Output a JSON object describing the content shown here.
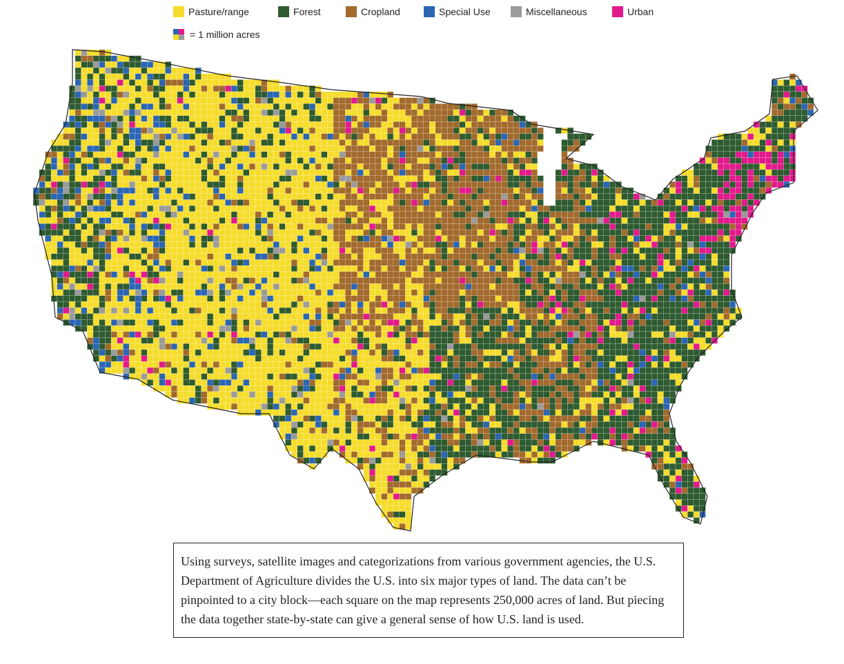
{
  "legend": {
    "items": [
      {
        "label": "Pasture/range",
        "color": "#f6dc2b"
      },
      {
        "label": "Forest",
        "color": "#2e5b30"
      },
      {
        "label": "Cropland",
        "color": "#a26a2d"
      },
      {
        "label": "Special Use",
        "color": "#2b66b5"
      },
      {
        "label": "Miscellaneous",
        "color": "#9b9b9b"
      },
      {
        "label": "Urban",
        "color": "#e21a8c"
      }
    ],
    "scale_label": "= 1 million acres"
  },
  "description": "Using surveys, satellite images and categorizations from various government agencies, the U.S. Department of Agriculture divides the U.S. into six major types of land. The data can’t be pinpointed to a city block—each square on the map represents 250,000 acres of land. But piecing the data together state-by-state can give a general sense of how U.S. land is used."
}
